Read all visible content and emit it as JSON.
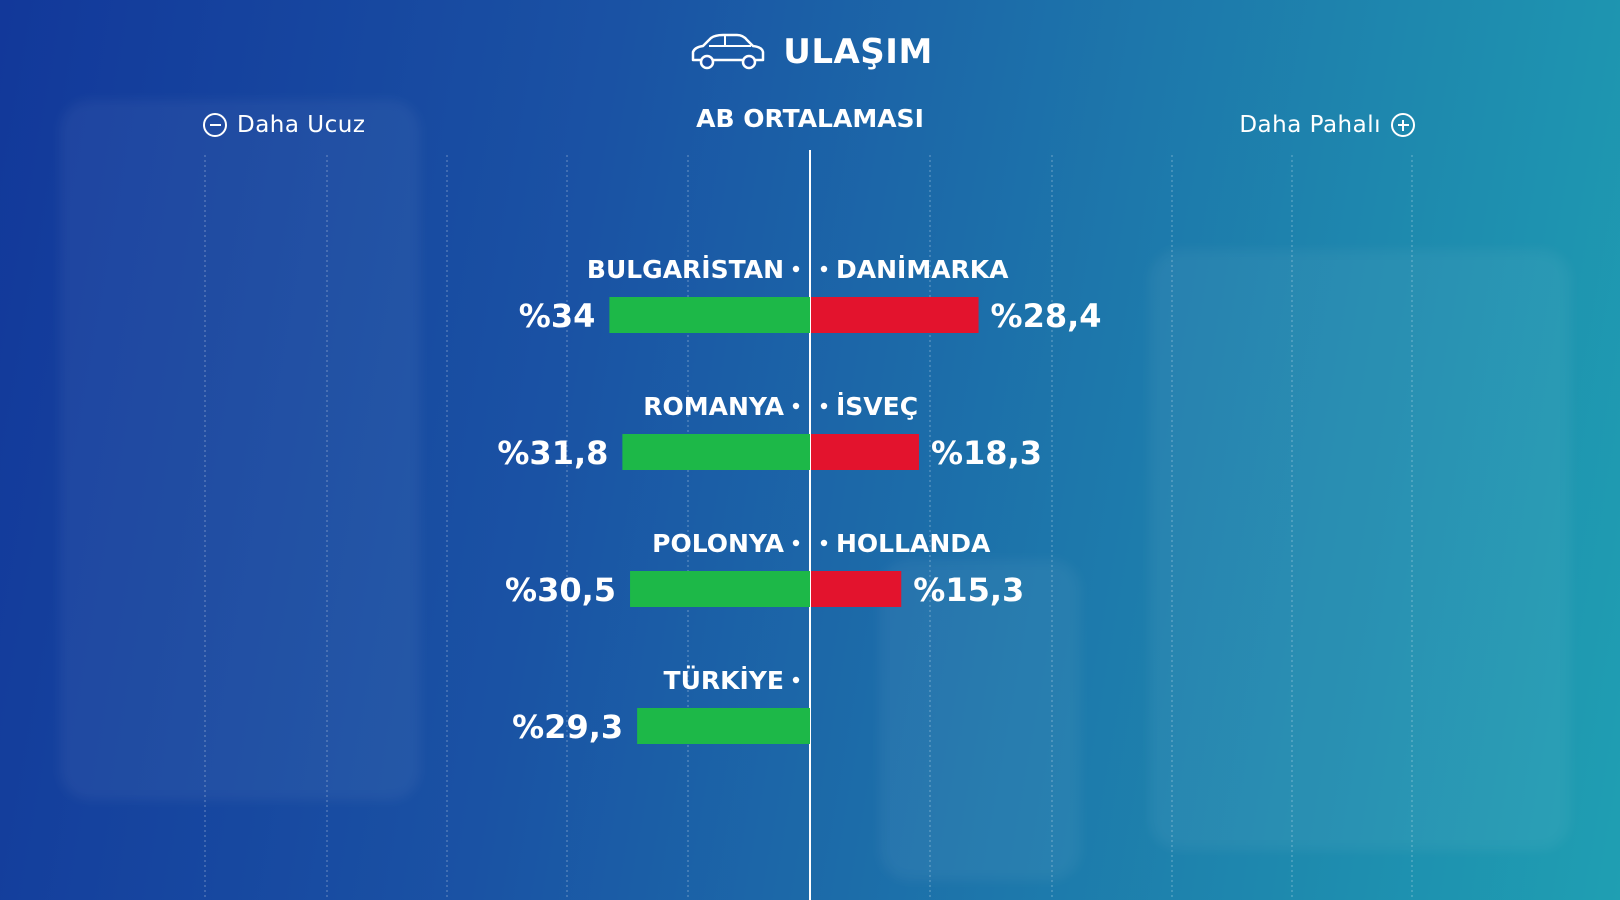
{
  "header": {
    "icon": "car-icon",
    "title": "ULAŞIM",
    "subtitle": "AB ORTALAMASI",
    "left_label": "Daha Ucuz",
    "left_icon": "minus-circle-icon",
    "right_label": "Daha Pahalı",
    "right_icon": "plus-circle-icon"
  },
  "colors": {
    "cheaper": "#1db848",
    "pricier": "#e3132d",
    "background_start": "#12389a",
    "background_end": "#1f9fb2"
  },
  "chart_data": {
    "type": "bar",
    "orientation": "horizontal-diverging",
    "title": "ULAŞIM",
    "subtitle": "AB ORTALAMASI",
    "baseline": "AB ORTALAMASI",
    "unit": "%",
    "series": [
      {
        "name": "Daha Ucuz",
        "side": "left",
        "categories": [
          "BULGARİSTAN",
          "ROMANYA",
          "POLONYA",
          "TÜRKİYE"
        ],
        "values": [
          34,
          31.8,
          30.5,
          29.3
        ],
        "labels": [
          "%34",
          "%31,8",
          "%30,5",
          "%29,3"
        ]
      },
      {
        "name": "Daha Pahalı",
        "side": "right",
        "categories": [
          "DANİMARKA",
          "İSVEÇ",
          "HOLLANDA"
        ],
        "values": [
          28.4,
          18.3,
          15.3
        ],
        "labels": [
          "%28,4",
          "%18,3",
          "%15,3"
        ]
      }
    ],
    "grid": true
  }
}
